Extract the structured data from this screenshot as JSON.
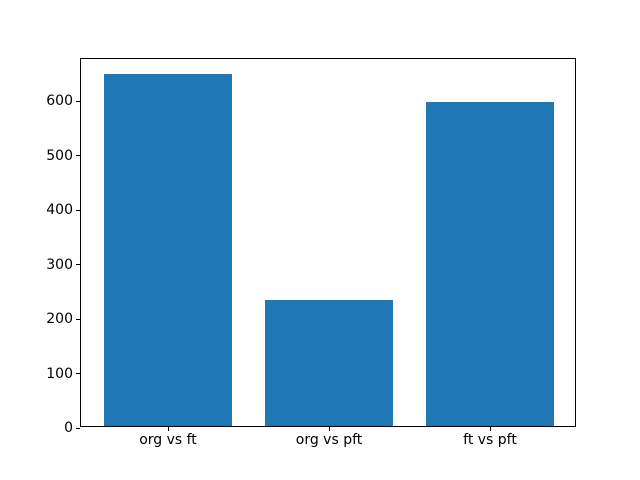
{
  "chart_data": {
    "type": "bar",
    "title": "",
    "xlabel": "",
    "ylabel": "",
    "categories": [
      "org vs ft",
      "org vs pft",
      "ft vs pft"
    ],
    "values": [
      645,
      232,
      594
    ],
    "yticks": [
      0,
      100,
      200,
      300,
      400,
      500,
      600
    ],
    "ylim": [
      0,
      677
    ],
    "bar_width_fraction": 0.8,
    "bar_color": "#1f77b4",
    "spine_color": "#000000",
    "background_color": "#ffffff",
    "grid": false,
    "legend": null
  }
}
